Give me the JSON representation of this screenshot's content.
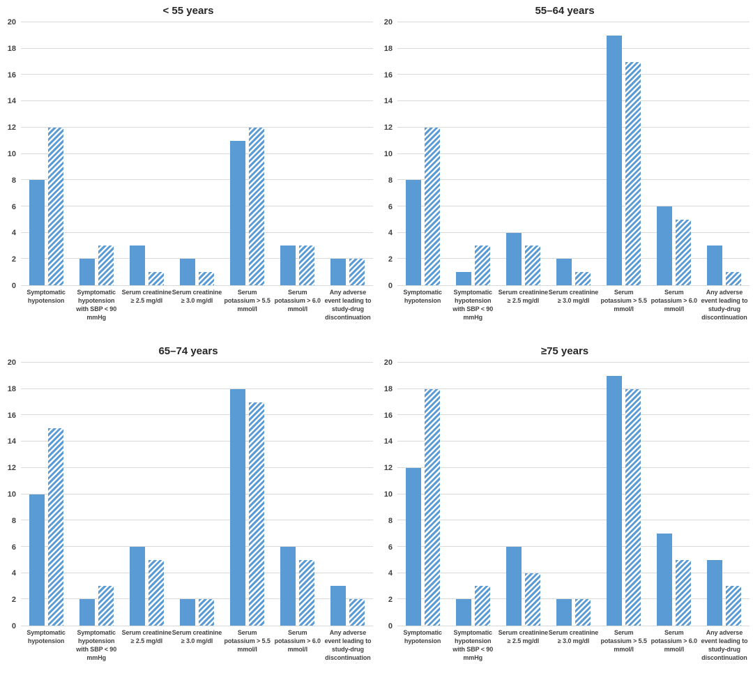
{
  "style": {
    "bar_color": "#5b9bd5",
    "grid_color": "#d9d9d9",
    "axis_text_color": "#404040",
    "title_color": "#262626",
    "background": "#ffffff"
  },
  "chart_data": [
    {
      "type": "bar",
      "title": "< 55 years",
      "categories": [
        "Symptomatic hypotension",
        "Symptomatic hypotension with SBP < 90 mmHg",
        "Serum creatinine ≥ 2.5 mg/dl",
        "Serum creatinine ≥ 3.0 mg/dl",
        "Serum potassium > 5.5 mmol/l",
        "Serum potassium > 6.0 mmol/l",
        "Any adverse event leading to study-drug discontinuation"
      ],
      "series": [
        {
          "name": "solid-blue",
          "values": [
            8,
            2,
            3,
            2,
            11,
            3,
            2
          ]
        },
        {
          "name": "hatched-blue",
          "values": [
            12,
            3,
            1,
            1,
            12,
            3,
            2
          ]
        }
      ],
      "ylim": [
        0,
        20
      ],
      "ytick_step": 2,
      "grid": true,
      "legend": "none"
    },
    {
      "type": "bar",
      "title": "55–64 years",
      "categories": [
        "Symptomatic hypotension",
        "Symptomatic hypotension with SBP < 90 mmHg",
        "Serum creatinine ≥ 2.5 mg/dl",
        "Serum creatinine ≥ 3.0 mg/dl",
        "Serum potassium > 5.5 mmol/l",
        "Serum potassium > 6.0 mmol/l",
        "Any adverse event leading to study-drug discontinuation"
      ],
      "series": [
        {
          "name": "solid-blue",
          "values": [
            8,
            1,
            4,
            2,
            19,
            6,
            3
          ]
        },
        {
          "name": "hatched-blue",
          "values": [
            12,
            3,
            3,
            1,
            17,
            5,
            1
          ]
        }
      ],
      "ylim": [
        0,
        20
      ],
      "ytick_step": 2,
      "grid": true,
      "legend": "none"
    },
    {
      "type": "bar",
      "title": "65–74 years",
      "categories": [
        "Symptomatic hypotension",
        "Symptomatic hypotension with SBP < 90 mmHg",
        "Serum creatinine ≥ 2.5 mg/dl",
        "Serum creatinine ≥ 3.0 mg/dl",
        "Serum potassium > 5.5 mmol/l",
        "Serum potassium > 6.0 mmol/l",
        "Any adverse event leading to study-drug discontinuation"
      ],
      "series": [
        {
          "name": "solid-blue",
          "values": [
            10,
            2,
            6,
            2,
            18,
            6,
            3
          ]
        },
        {
          "name": "hatched-blue",
          "values": [
            15,
            3,
            5,
            2,
            17,
            5,
            2
          ]
        }
      ],
      "ylim": [
        0,
        20
      ],
      "ytick_step": 2,
      "grid": true,
      "legend": "none"
    },
    {
      "type": "bar",
      "title": "≥75 years",
      "categories": [
        "Symptomatic hypotension",
        "Symptomatic hypotension with SBP < 90 mmHg",
        "Serum creatinine ≥ 2.5 mg/dl",
        "Serum creatinine ≥ 3.0 mg/dl",
        "Serum potassium > 5.5 mmol/l",
        "Serum potassium > 6.0 mmol/l",
        "Any adverse event leading to study-drug discontinuation"
      ],
      "series": [
        {
          "name": "solid-blue",
          "values": [
            12,
            2,
            6,
            2,
            19,
            7,
            5
          ]
        },
        {
          "name": "hatched-blue",
          "values": [
            18,
            3,
            4,
            2,
            18,
            5,
            3
          ]
        }
      ],
      "ylim": [
        0,
        20
      ],
      "ytick_step": 2,
      "grid": true,
      "legend": "none"
    }
  ]
}
